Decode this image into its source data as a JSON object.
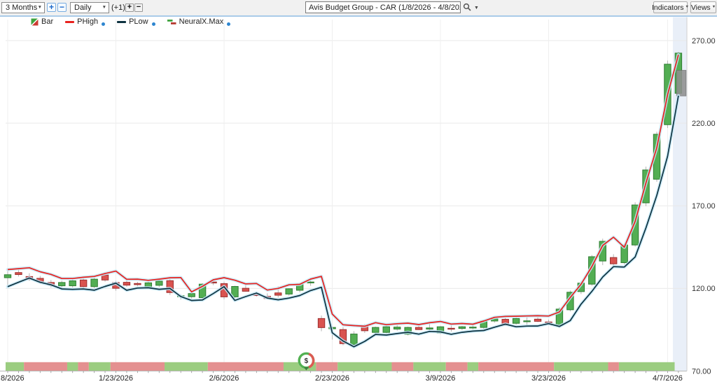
{
  "toolbar": {
    "range_select": {
      "value": "3 Months"
    },
    "zoom_in_label": "+",
    "zoom_out_label": "−",
    "period_select": {
      "value": "Daily"
    },
    "plus_one_label": "(+1)",
    "add_bar_label": "+",
    "remove_bar_label": "−",
    "symbol_search": {
      "value": "Avis Budget Group - CAR (1/8/2026 - 4/8/2026)"
    },
    "indicators_button": "Indicators",
    "views_button": "Views"
  },
  "legend": {
    "items": [
      {
        "id": "bar",
        "label": "Bar",
        "icon": "bar-candle-icon",
        "has_dot": false
      },
      {
        "id": "phigh",
        "label": "PHigh",
        "icon": "line-icon",
        "color": "#e8221e",
        "has_dot": true
      },
      {
        "id": "plow",
        "label": "PLow",
        "icon": "line-icon",
        "color": "#0e3340",
        "has_dot": true
      },
      {
        "id": "neuralx",
        "label": "NeuralX.Max",
        "icon": "neuralx-step-icon",
        "has_dot": true
      }
    ]
  },
  "colors": {
    "candle_up_fill": "#53ae53",
    "candle_up_stroke": "#2e7d32",
    "candle_down_fill": "#d9534f",
    "candle_down_stroke": "#9c3030",
    "wick": "#b3b3b3",
    "phigh_line": "#e8221e",
    "plow_line": "#0e3340",
    "line_glow": "#c3e8f8",
    "strip_green": "#9bcd80",
    "strip_red": "#e49090",
    "highlight_band": "#e9eff8",
    "grid": "#e9e9e9",
    "projection": "#909090",
    "axis_text": "#333333"
  },
  "chart_data": {
    "type": "candlestick",
    "title": "Avis Budget Group - CAR (1/8/2026 - 4/8/2026)",
    "ylim": [
      70,
      280
    ],
    "y_ticks": [
      270,
      220,
      170,
      120,
      70
    ],
    "y_tick_labels": [
      "270.00",
      "220.00",
      "170.00",
      "120.00",
      "70.00"
    ],
    "x_ticks": [
      {
        "index": 0,
        "label": "8/2026",
        "clipped": true
      },
      {
        "index": 10,
        "label": "1/23/2026"
      },
      {
        "index": 20,
        "label": "2/6/2026"
      },
      {
        "index": 30,
        "label": "2/23/2026"
      },
      {
        "index": 40,
        "label": "3/9/2026"
      },
      {
        "index": 50,
        "label": "3/23/2026"
      },
      {
        "index": 61,
        "label": "4/7/2026"
      }
    ],
    "dates": [
      "1/8",
      "1/9",
      "1/12",
      "1/13",
      "1/14",
      "1/15",
      "1/16",
      "1/20",
      "1/21",
      "1/22",
      "1/23",
      "1/26",
      "1/27",
      "1/28",
      "1/29",
      "1/30",
      "2/2",
      "2/3",
      "2/4",
      "2/5",
      "2/6",
      "2/9",
      "2/10",
      "2/11",
      "2/12",
      "2/13",
      "2/17",
      "2/18",
      "2/19",
      "2/20",
      "2/23",
      "2/24",
      "2/25",
      "2/26",
      "2/27",
      "3/2",
      "3/3",
      "3/4",
      "3/5",
      "3/6",
      "3/9",
      "3/10",
      "3/11",
      "3/12",
      "3/13",
      "3/16",
      "3/17",
      "3/18",
      "3/19",
      "3/20",
      "3/23",
      "3/24",
      "3/25",
      "3/26",
      "3/27",
      "3/30",
      "3/31",
      "4/1",
      "4/2",
      "4/3",
      "4/6",
      "4/7",
      "4/8"
    ],
    "ohlc": [
      [
        126.5,
        130.5,
        122.0,
        128.3
      ],
      [
        129.6,
        131.6,
        127.2,
        128.4
      ],
      [
        127.2,
        129.2,
        124.6,
        125.4
      ],
      [
        126.1,
        127.6,
        123.1,
        124.1
      ],
      [
        123.6,
        125.1,
        120.6,
        122.0
      ],
      [
        121.6,
        124.6,
        120.1,
        123.6
      ],
      [
        121.6,
        125.6,
        120.6,
        124.6
      ],
      [
        125.1,
        126.1,
        119.6,
        121.1
      ],
      [
        121.1,
        126.6,
        120.1,
        125.6
      ],
      [
        128.1,
        129.6,
        124.1,
        125.1
      ],
      [
        123.6,
        124.6,
        118.6,
        120.1
      ],
      [
        123.7,
        124.7,
        121.0,
        122.0
      ],
      [
        123.0,
        124.0,
        121.3,
        122.3
      ],
      [
        120.9,
        124.0,
        119.9,
        123.4
      ],
      [
        121.9,
        125.4,
        120.9,
        124.4
      ],
      [
        124.7,
        125.7,
        116.0,
        117.5
      ],
      [
        115.0,
        116.5,
        113.3,
        115.6
      ],
      [
        115.0,
        117.6,
        113.9,
        116.9
      ],
      [
        114.4,
        123.1,
        113.6,
        122.6
      ],
      [
        123.9,
        125.6,
        122.0,
        123.3
      ],
      [
        122.9,
        124.1,
        113.4,
        114.9
      ],
      [
        114.9,
        121.6,
        113.9,
        121.2
      ],
      [
        120.1,
        122.1,
        118.1,
        118.3
      ],
      [
        117.0,
        118.1,
        115.1,
        115.7
      ],
      [
        115.2,
        117.0,
        113.6,
        113.9
      ],
      [
        117.3,
        121.3,
        114.5,
        115.9
      ],
      [
        116.6,
        120.1,
        115.6,
        119.8
      ],
      [
        118.9,
        123.1,
        117.6,
        122.6
      ],
      [
        123.6,
        126.4,
        121.6,
        123.9
      ],
      [
        101.8,
        103.6,
        94.1,
        96.3
      ],
      [
        95.6,
        97.1,
        89.1,
        96.4
      ],
      [
        95.1,
        96.6,
        85.6,
        86.6
      ],
      [
        86.1,
        94.1,
        84.6,
        92.4
      ],
      [
        97.4,
        98.4,
        93.1,
        94.4
      ],
      [
        93.4,
        96.9,
        92.6,
        96.4
      ],
      [
        93.4,
        97.4,
        92.8,
        96.8
      ],
      [
        95.4,
        98.1,
        94.4,
        96.6
      ],
      [
        92.3,
        96.9,
        91.6,
        96.4
      ],
      [
        96.4,
        97.6,
        94.9,
        95.1
      ],
      [
        95.4,
        99.1,
        94.6,
        96.1
      ],
      [
        93.0,
        97.2,
        92.4,
        96.8
      ],
      [
        95.9,
        97.9,
        93.9,
        95.5
      ],
      [
        95.8,
        97.3,
        94.8,
        96.8
      ],
      [
        96.1,
        97.6,
        95.3,
        96.6
      ],
      [
        96.4,
        101.1,
        95.6,
        100.4
      ],
      [
        100.3,
        102.1,
        99.3,
        101.6
      ],
      [
        101.3,
        102.3,
        97.3,
        97.9
      ],
      [
        98.9,
        102.3,
        98.1,
        101.8
      ],
      [
        100.1,
        102.6,
        96.7,
        100.4
      ],
      [
        101.4,
        102.4,
        99.6,
        100.1
      ],
      [
        99.7,
        101.1,
        97.9,
        99.4
      ],
      [
        97.7,
        108.6,
        96.7,
        107.5
      ],
      [
        107.1,
        118.7,
        106.1,
        117.7
      ],
      [
        118.1,
        124.6,
        116.6,
        123.2
      ],
      [
        122.6,
        140.2,
        121.6,
        139.2
      ],
      [
        136.6,
        150.1,
        134.1,
        148.5
      ],
      [
        138.7,
        140.7,
        133.1,
        134.9
      ],
      [
        135.6,
        147.3,
        134.6,
        146.3
      ],
      [
        146.3,
        172.1,
        145.3,
        170.5
      ],
      [
        171.8,
        193.7,
        169.8,
        191.7
      ],
      [
        186.1,
        214.8,
        184.6,
        213.3
      ],
      [
        219.1,
        257.9,
        217.1,
        255.7
      ],
      [
        238.1,
        263.1,
        236.1,
        262.4
      ]
    ],
    "signal_band": [
      "g",
      "g",
      "r",
      "r",
      "r",
      "r",
      "g",
      "r",
      "g",
      "g",
      "r",
      "r",
      "r",
      "r",
      "r",
      "g",
      "g",
      "g",
      "g",
      "r",
      "r",
      "r",
      "r",
      "r",
      "r",
      "r",
      "g",
      "g",
      "g",
      "r",
      "r",
      "g",
      "g",
      "g",
      "g",
      "g",
      "r",
      "r",
      "g",
      "g",
      "g",
      "r",
      "r",
      "g",
      "r",
      "r",
      "r",
      "r",
      "r",
      "r",
      "r",
      "g",
      "g",
      "g",
      "g",
      "g",
      "r",
      "g",
      "g",
      "g",
      "g",
      "g",
      "g"
    ],
    "lines": [
      {
        "name": "PHigh",
        "color": "#e8221e"
      },
      {
        "name": "PLow",
        "color": "#0e3340"
      }
    ],
    "projection_box": {
      "index": 62,
      "high": 252.0,
      "low": 236.5
    },
    "event_marker": {
      "x_index": 27.6,
      "label": "$"
    },
    "current_bar_highlight": {
      "index": 62
    }
  }
}
